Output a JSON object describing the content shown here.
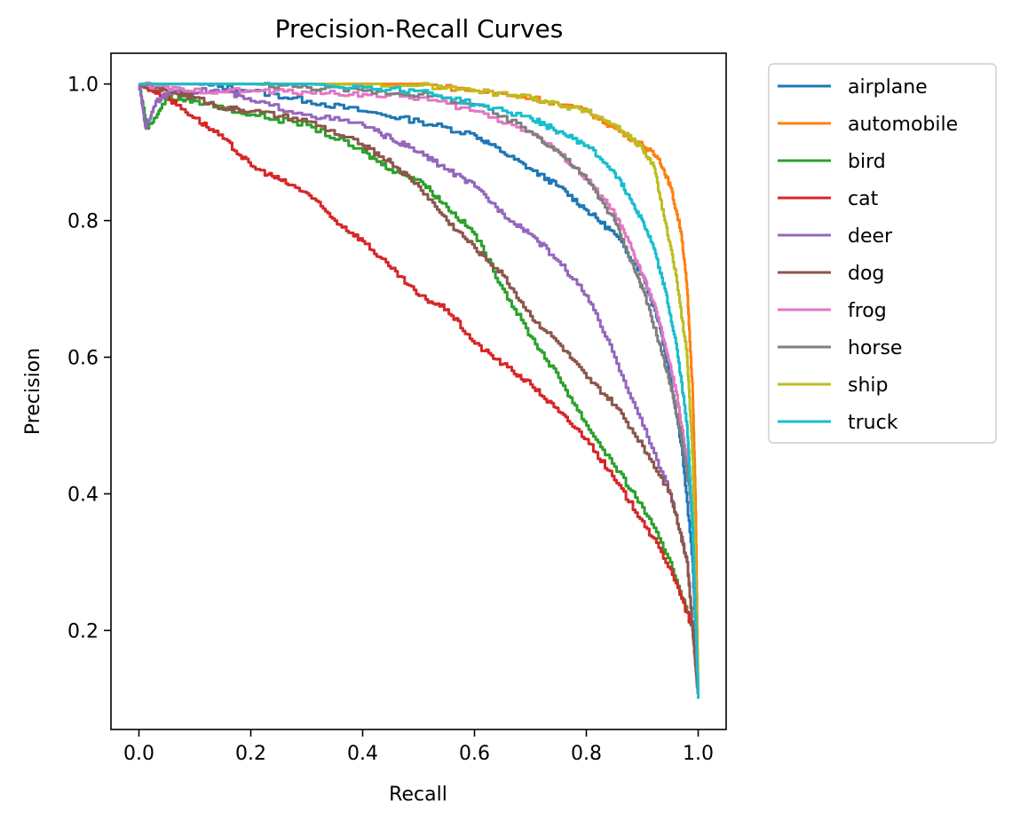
{
  "chart_data": {
    "type": "line",
    "title": "Precision-Recall Curves",
    "xlabel": "Recall",
    "ylabel": "Precision",
    "xlim": [
      -0.05,
      1.05
    ],
    "ylim": [
      0.055,
      1.045
    ],
    "xticks": [
      0.0,
      0.2,
      0.4,
      0.6,
      0.8,
      1.0
    ],
    "xtick_labels": [
      "0.0",
      "0.2",
      "0.4",
      "0.6",
      "0.8",
      "1.0"
    ],
    "yticks": [
      0.2,
      0.4,
      0.6,
      0.8,
      1.0
    ],
    "ytick_labels": [
      "0.2",
      "0.4",
      "0.6",
      "0.8",
      "1.0"
    ],
    "grid": false,
    "legend": "outside-upper-right",
    "series": [
      {
        "name": "airplane",
        "color": "#1f77b4",
        "points": [
          [
            0,
            1.0
          ],
          [
            0.1,
            1.0
          ],
          [
            0.2,
            0.99
          ],
          [
            0.3,
            0.975
          ],
          [
            0.4,
            0.96
          ],
          [
            0.5,
            0.945
          ],
          [
            0.6,
            0.925
          ],
          [
            0.65,
            0.9
          ],
          [
            0.7,
            0.875
          ],
          [
            0.75,
            0.85
          ],
          [
            0.8,
            0.815
          ],
          [
            0.85,
            0.78
          ],
          [
            0.9,
            0.72
          ],
          [
            0.93,
            0.65
          ],
          [
            0.95,
            0.57
          ],
          [
            0.97,
            0.47
          ],
          [
            0.99,
            0.3
          ],
          [
            1.0,
            0.1
          ]
        ]
      },
      {
        "name": "automobile",
        "color": "#ff7f0e",
        "points": [
          [
            0,
            1.0
          ],
          [
            0.5,
            1.0
          ],
          [
            0.6,
            0.99
          ],
          [
            0.7,
            0.98
          ],
          [
            0.8,
            0.96
          ],
          [
            0.85,
            0.935
          ],
          [
            0.9,
            0.91
          ],
          [
            0.93,
            0.89
          ],
          [
            0.95,
            0.85
          ],
          [
            0.97,
            0.78
          ],
          [
            0.98,
            0.7
          ],
          [
            0.99,
            0.55
          ],
          [
            0.995,
            0.4
          ],
          [
            1.0,
            0.1
          ]
        ]
      },
      {
        "name": "bird",
        "color": "#2ca02c",
        "points": [
          [
            0,
            1.0
          ],
          [
            0.015,
            0.935
          ],
          [
            0.05,
            0.98
          ],
          [
            0.1,
            0.975
          ],
          [
            0.2,
            0.955
          ],
          [
            0.3,
            0.94
          ],
          [
            0.4,
            0.9
          ],
          [
            0.45,
            0.875
          ],
          [
            0.5,
            0.86
          ],
          [
            0.55,
            0.82
          ],
          [
            0.6,
            0.78
          ],
          [
            0.65,
            0.7
          ],
          [
            0.7,
            0.63
          ],
          [
            0.75,
            0.57
          ],
          [
            0.8,
            0.5
          ],
          [
            0.85,
            0.44
          ],
          [
            0.9,
            0.38
          ],
          [
            0.95,
            0.3
          ],
          [
            0.99,
            0.2
          ],
          [
            1.0,
            0.1
          ]
        ]
      },
      {
        "name": "cat",
        "color": "#d62728",
        "points": [
          [
            0,
            1.0
          ],
          [
            0.05,
            0.98
          ],
          [
            0.1,
            0.95
          ],
          [
            0.15,
            0.92
          ],
          [
            0.2,
            0.88
          ],
          [
            0.25,
            0.86
          ],
          [
            0.3,
            0.84
          ],
          [
            0.35,
            0.8
          ],
          [
            0.4,
            0.77
          ],
          [
            0.45,
            0.73
          ],
          [
            0.5,
            0.69
          ],
          [
            0.55,
            0.67
          ],
          [
            0.6,
            0.62
          ],
          [
            0.65,
            0.59
          ],
          [
            0.7,
            0.56
          ],
          [
            0.75,
            0.52
          ],
          [
            0.8,
            0.48
          ],
          [
            0.85,
            0.42
          ],
          [
            0.9,
            0.36
          ],
          [
            0.95,
            0.29
          ],
          [
            0.99,
            0.2
          ],
          [
            1.0,
            0.1
          ]
        ]
      },
      {
        "name": "deer",
        "color": "#9467bd",
        "points": [
          [
            0,
            1.0
          ],
          [
            0.012,
            0.935
          ],
          [
            0.03,
            0.975
          ],
          [
            0.06,
            0.99
          ],
          [
            0.15,
            0.99
          ],
          [
            0.2,
            0.975
          ],
          [
            0.3,
            0.955
          ],
          [
            0.4,
            0.94
          ],
          [
            0.45,
            0.92
          ],
          [
            0.5,
            0.9
          ],
          [
            0.55,
            0.875
          ],
          [
            0.6,
            0.85
          ],
          [
            0.65,
            0.81
          ],
          [
            0.7,
            0.78
          ],
          [
            0.75,
            0.74
          ],
          [
            0.8,
            0.69
          ],
          [
            0.85,
            0.6
          ],
          [
            0.9,
            0.5
          ],
          [
            0.95,
            0.4
          ],
          [
            0.98,
            0.3
          ],
          [
            1.0,
            0.1
          ]
        ]
      },
      {
        "name": "dog",
        "color": "#8c564b",
        "points": [
          [
            0,
            1.0
          ],
          [
            0.05,
            0.99
          ],
          [
            0.1,
            0.98
          ],
          [
            0.15,
            0.965
          ],
          [
            0.2,
            0.96
          ],
          [
            0.3,
            0.945
          ],
          [
            0.4,
            0.91
          ],
          [
            0.45,
            0.885
          ],
          [
            0.5,
            0.85
          ],
          [
            0.55,
            0.8
          ],
          [
            0.6,
            0.76
          ],
          [
            0.65,
            0.72
          ],
          [
            0.7,
            0.66
          ],
          [
            0.75,
            0.62
          ],
          [
            0.8,
            0.57
          ],
          [
            0.85,
            0.53
          ],
          [
            0.9,
            0.47
          ],
          [
            0.95,
            0.4
          ],
          [
            0.98,
            0.3
          ],
          [
            1.0,
            0.1
          ]
        ]
      },
      {
        "name": "frog",
        "color": "#e377c2",
        "points": [
          [
            0,
            1.0
          ],
          [
            0.08,
            0.99
          ],
          [
            0.2,
            0.99
          ],
          [
            0.3,
            0.988
          ],
          [
            0.4,
            0.985
          ],
          [
            0.5,
            0.98
          ],
          [
            0.6,
            0.96
          ],
          [
            0.7,
            0.93
          ],
          [
            0.75,
            0.9
          ],
          [
            0.8,
            0.86
          ],
          [
            0.85,
            0.81
          ],
          [
            0.88,
            0.76
          ],
          [
            0.9,
            0.72
          ],
          [
            0.92,
            0.68
          ],
          [
            0.94,
            0.62
          ],
          [
            0.96,
            0.55
          ],
          [
            0.98,
            0.45
          ],
          [
            0.99,
            0.35
          ],
          [
            1.0,
            0.1
          ]
        ]
      },
      {
        "name": "horse",
        "color": "#7f7f7f",
        "points": [
          [
            0,
            1.0
          ],
          [
            0.2,
            1.0
          ],
          [
            0.3,
            0.995
          ],
          [
            0.4,
            0.99
          ],
          [
            0.5,
            0.985
          ],
          [
            0.6,
            0.97
          ],
          [
            0.7,
            0.93
          ],
          [
            0.75,
            0.9
          ],
          [
            0.8,
            0.86
          ],
          [
            0.85,
            0.8
          ],
          [
            0.88,
            0.74
          ],
          [
            0.9,
            0.7
          ],
          [
            0.93,
            0.62
          ],
          [
            0.95,
            0.56
          ],
          [
            0.97,
            0.48
          ],
          [
            0.99,
            0.38
          ],
          [
            1.0,
            0.1
          ]
        ]
      },
      {
        "name": "ship",
        "color": "#bcbd22",
        "points": [
          [
            0,
            1.0
          ],
          [
            0.3,
            1.0
          ],
          [
            0.5,
            0.998
          ],
          [
            0.6,
            0.99
          ],
          [
            0.7,
            0.98
          ],
          [
            0.75,
            0.97
          ],
          [
            0.8,
            0.96
          ],
          [
            0.85,
            0.94
          ],
          [
            0.88,
            0.92
          ],
          [
            0.9,
            0.905
          ],
          [
            0.92,
            0.88
          ],
          [
            0.94,
            0.8
          ],
          [
            0.96,
            0.72
          ],
          [
            0.98,
            0.6
          ],
          [
            0.99,
            0.45
          ],
          [
            1.0,
            0.1
          ]
        ]
      },
      {
        "name": "truck",
        "color": "#17becf",
        "points": [
          [
            0,
            1.0
          ],
          [
            0.3,
            1.0
          ],
          [
            0.4,
            0.995
          ],
          [
            0.5,
            0.99
          ],
          [
            0.6,
            0.97
          ],
          [
            0.7,
            0.95
          ],
          [
            0.75,
            0.93
          ],
          [
            0.8,
            0.91
          ],
          [
            0.85,
            0.87
          ],
          [
            0.88,
            0.83
          ],
          [
            0.9,
            0.8
          ],
          [
            0.92,
            0.76
          ],
          [
            0.94,
            0.7
          ],
          [
            0.96,
            0.62
          ],
          [
            0.98,
            0.5
          ],
          [
            0.99,
            0.35
          ],
          [
            1.0,
            0.1
          ]
        ]
      }
    ]
  }
}
